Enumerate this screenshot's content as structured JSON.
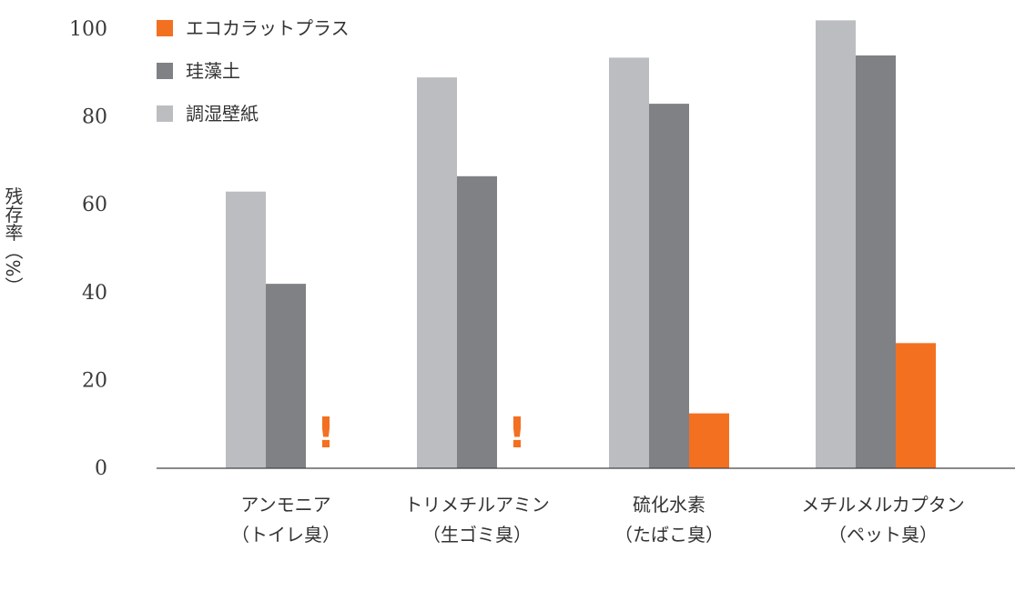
{
  "chart_data": {
    "type": "bar",
    "title": "",
    "xlabel": "",
    "ylabel": "残存率（%）",
    "ylim": [
      0,
      100
    ],
    "yticks": [
      0,
      20,
      40,
      60,
      80,
      100
    ],
    "grid": false,
    "legend_position": "top-left",
    "categories": [
      [
        "アンモニア",
        "（トイレ臭）"
      ],
      [
        "トリメチルアミン",
        "（生ゴミ臭）"
      ],
      [
        "硫化水素",
        "（たばこ臭）"
      ],
      [
        "メチルメルカプタン",
        "（ペット臭）"
      ]
    ],
    "series": [
      {
        "name": "調湿壁紙",
        "color": "#bcbdc0",
        "values": [
          63,
          89,
          93.5,
          102
        ]
      },
      {
        "name": "珪藻土",
        "color": "#808184",
        "values": [
          42,
          66.5,
          83,
          94
        ]
      },
      {
        "name": "エコカラットプラス",
        "color": "#f37021",
        "values": [
          null,
          null,
          12.5,
          28.5
        ]
      }
    ],
    "legend_order": [
      "エコカラットプラス",
      "珪藻土",
      "調湿壁紙"
    ],
    "annotations": [
      {
        "category_index": 0,
        "text": "!",
        "color": "#f37021"
      },
      {
        "category_index": 1,
        "text": "!",
        "color": "#f37021"
      }
    ]
  }
}
